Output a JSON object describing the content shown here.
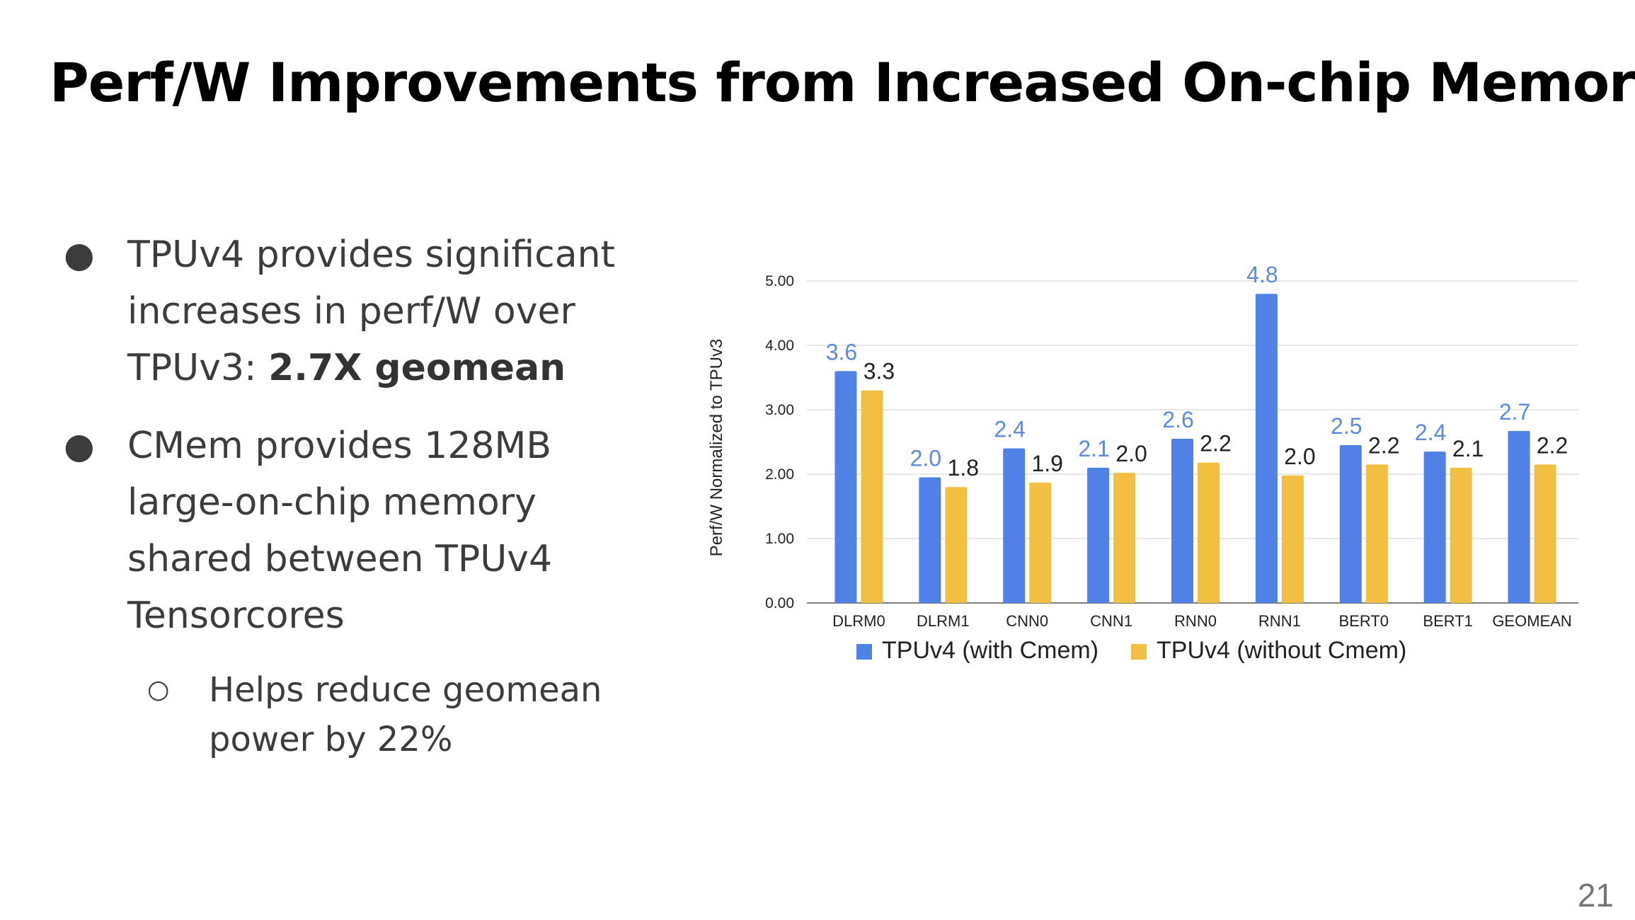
{
  "slide": {
    "title": "Perf/W Improvements from Increased On-chip Memory",
    "page_number": "21"
  },
  "bullets": [
    {
      "text": "TPUv4 provides significant increases in perf/W over TPUv3: ",
      "bold": "2.7X geomean"
    },
    {
      "text": "CMem provides 128MB large-on-chip memory shared between TPUv4 Tensorcores"
    }
  ],
  "sub_bullets": [
    {
      "text": "Helps reduce geomean power by 22%"
    }
  ],
  "chart_data": {
    "type": "bar",
    "title": "",
    "xlabel": "",
    "ylabel": "Perf/W Normalized to TPUv3",
    "ylim": [
      0,
      5
    ],
    "yticks": [
      "0.00",
      "1.00",
      "2.00",
      "3.00",
      "4.00",
      "5.00"
    ],
    "grid": true,
    "legend_position": "bottom",
    "categories": [
      "DLRM0",
      "DLRM1",
      "CNN0",
      "CNN1",
      "RNN0",
      "RNN1",
      "BERT0",
      "BERT1",
      "GEOMEAN"
    ],
    "series": [
      {
        "name": "TPUv4 (with Cmem)",
        "color": "#4f81e6",
        "label_color": "#5b8ae0",
        "values": [
          3.6,
          1.95,
          2.4,
          2.1,
          2.55,
          4.8,
          2.45,
          2.35,
          2.67
        ],
        "labels": [
          "3.6",
          "2.0",
          "2.4",
          "2.1",
          "2.6",
          "4.8",
          "2.5",
          "2.4",
          "2.7"
        ]
      },
      {
        "name": "TPUv4 (without Cmem)",
        "color": "#f1bf42",
        "label_color": "#222222",
        "values": [
          3.3,
          1.8,
          1.87,
          2.02,
          2.18,
          1.98,
          2.15,
          2.1,
          2.15
        ],
        "labels": [
          "3.3",
          "1.8",
          "1.9",
          "2.0",
          "2.2",
          "2.0",
          "2.2",
          "2.1",
          "2.2"
        ]
      }
    ]
  }
}
